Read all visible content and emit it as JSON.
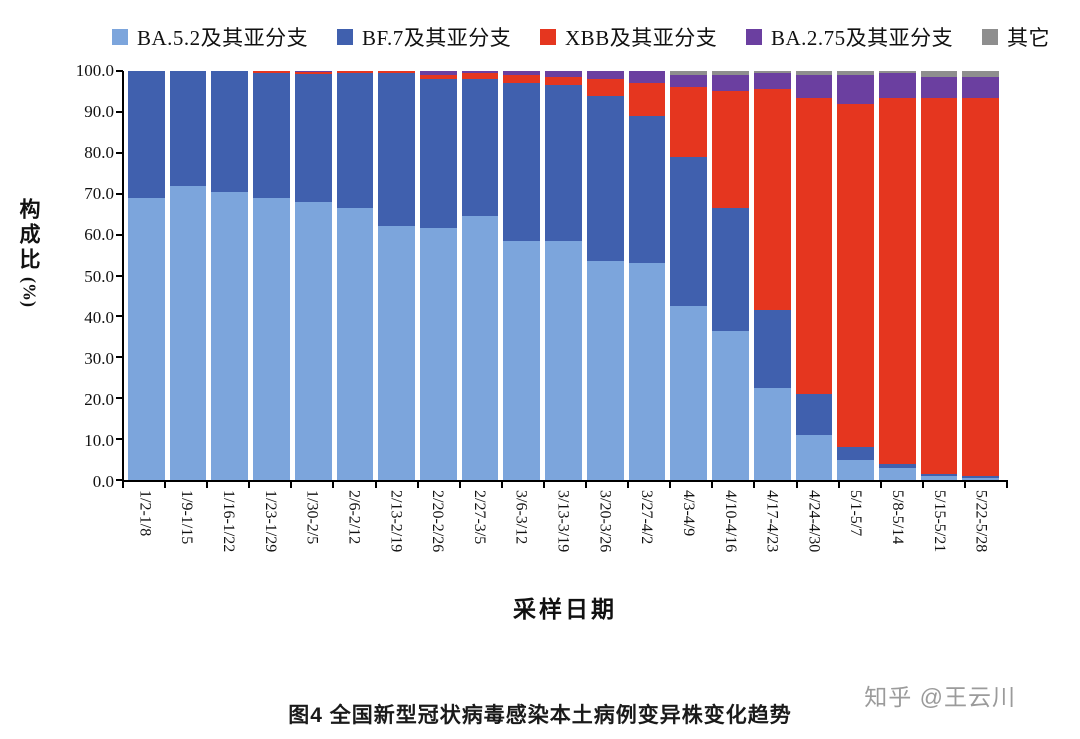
{
  "caption": "图4 全国新型冠状病毒感染本土病例变异株变化趋势",
  "watermark": "知乎 @王云川",
  "axis": {
    "x_title": "采样日期",
    "y_title_main": "构成比",
    "y_title_unit": "(%)"
  },
  "chart_data": {
    "type": "bar",
    "stacked": true,
    "title": "图4 全国新型冠状病毒感染本土病例变异株变化趋势",
    "xlabel": "采样日期",
    "ylabel": "构成比(%)",
    "ylim": [
      0,
      100
    ],
    "ytick_step": 10,
    "grid": false,
    "legend_position": "top",
    "yticks": [
      "100.0",
      "90.0",
      "80.0",
      "70.0",
      "60.0",
      "50.0",
      "40.0",
      "30.0",
      "20.0",
      "10.0",
      "0.0"
    ],
    "categories": [
      "1/2-1/8",
      "1/9-1/15",
      "1/16-1/22",
      "1/23-1/29",
      "1/30-2/5",
      "2/6-2/12",
      "2/13-2/19",
      "2/20-2/26",
      "2/27-3/5",
      "3/6-3/12",
      "3/13-3/19",
      "3/20-3/26",
      "3/27-4/2",
      "4/3-4/9",
      "4/10-4/16",
      "4/17-4/23",
      "4/24-4/30",
      "5/1-5/7",
      "5/8-5/14",
      "5/15-5/21",
      "5/22-5/28"
    ],
    "series": [
      {
        "name": "BA.5.2及其亚分支",
        "color": "#7CA5DC",
        "values": [
          69,
          72,
          70.5,
          69,
          68,
          66.5,
          62,
          61.5,
          64.5,
          58.5,
          58.5,
          53.5,
          53,
          42.5,
          36.5,
          22.5,
          11,
          5,
          3,
          1,
          0.5
        ]
      },
      {
        "name": "BF.7及其亚分支",
        "color": "#4060AE",
        "values": [
          31,
          28,
          29.5,
          30.5,
          31.3,
          33,
          37.5,
          36.5,
          33.5,
          38.5,
          38,
          40.5,
          36,
          36.5,
          30,
          19,
          10,
          3,
          1,
          0.5,
          0.5
        ]
      },
      {
        "name": "XBB及其亚分支",
        "color": "#E5361F",
        "values": [
          0,
          0,
          0,
          0.5,
          0.5,
          0.5,
          0.5,
          1,
          1.5,
          2,
          2,
          4,
          8,
          17,
          28.5,
          54,
          72.5,
          84,
          89.5,
          92,
          92.5
        ]
      },
      {
        "name": "BA.2.75及其亚分支",
        "color": "#6B3FA0",
        "values": [
          0,
          0,
          0,
          0,
          0.2,
          0,
          0,
          1,
          0.5,
          1,
          1.5,
          2,
          3,
          3,
          4,
          4,
          5.5,
          7,
          6,
          5,
          5
        ]
      },
      {
        "name": "其它",
        "color": "#8E8E8E",
        "values": [
          0,
          0,
          0,
          0,
          0,
          0,
          0,
          0,
          0,
          0,
          0,
          0,
          0,
          1,
          1,
          0.5,
          1,
          1,
          0.5,
          1.5,
          1.5
        ]
      }
    ]
  }
}
